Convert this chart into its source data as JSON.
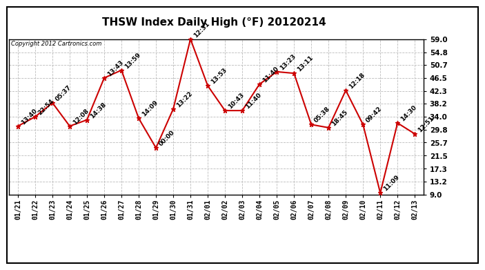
{
  "title": "THSW Index Daily High (°F) 20120214",
  "copyright": "Copyright 2012 Cartronics.com",
  "x_labels": [
    "01/21",
    "01/22",
    "01/23",
    "01/24",
    "01/25",
    "01/26",
    "01/27",
    "01/28",
    "01/29",
    "01/30",
    "01/31",
    "02/01",
    "02/02",
    "02/03",
    "02/04",
    "02/05",
    "02/06",
    "02/07",
    "02/08",
    "02/09",
    "02/10",
    "02/11",
    "02/12",
    "02/13"
  ],
  "y_values": [
    31.0,
    34.0,
    38.5,
    31.0,
    33.0,
    46.5,
    49.0,
    33.5,
    24.0,
    36.5,
    59.0,
    44.0,
    36.0,
    36.0,
    44.5,
    48.5,
    48.0,
    31.5,
    30.5,
    42.5,
    31.5,
    9.5,
    32.0,
    28.5
  ],
  "annotations": [
    "13:40",
    "22:54",
    "05:37",
    "12:08",
    "14:38",
    "13:43",
    "13:59",
    "14:09",
    "00:00",
    "13:22",
    "12:31",
    "13:53",
    "10:43",
    "11:40",
    "11:40",
    "13:23",
    "13:11",
    "05:38",
    "18:45",
    "12:18",
    "09:42",
    "11:09",
    "14:30",
    "12:51"
  ],
  "y_ticks": [
    9.0,
    13.2,
    17.3,
    21.5,
    25.7,
    29.8,
    34.0,
    38.2,
    42.3,
    46.5,
    50.7,
    54.8,
    59.0
  ],
  "ylim": [
    9.0,
    59.0
  ],
  "line_color": "#cc0000",
  "marker_color": "#cc0000",
  "bg_color": "#ffffff",
  "grid_color": "#bbbbbb",
  "title_fontsize": 11,
  "annot_fontsize": 6.5
}
